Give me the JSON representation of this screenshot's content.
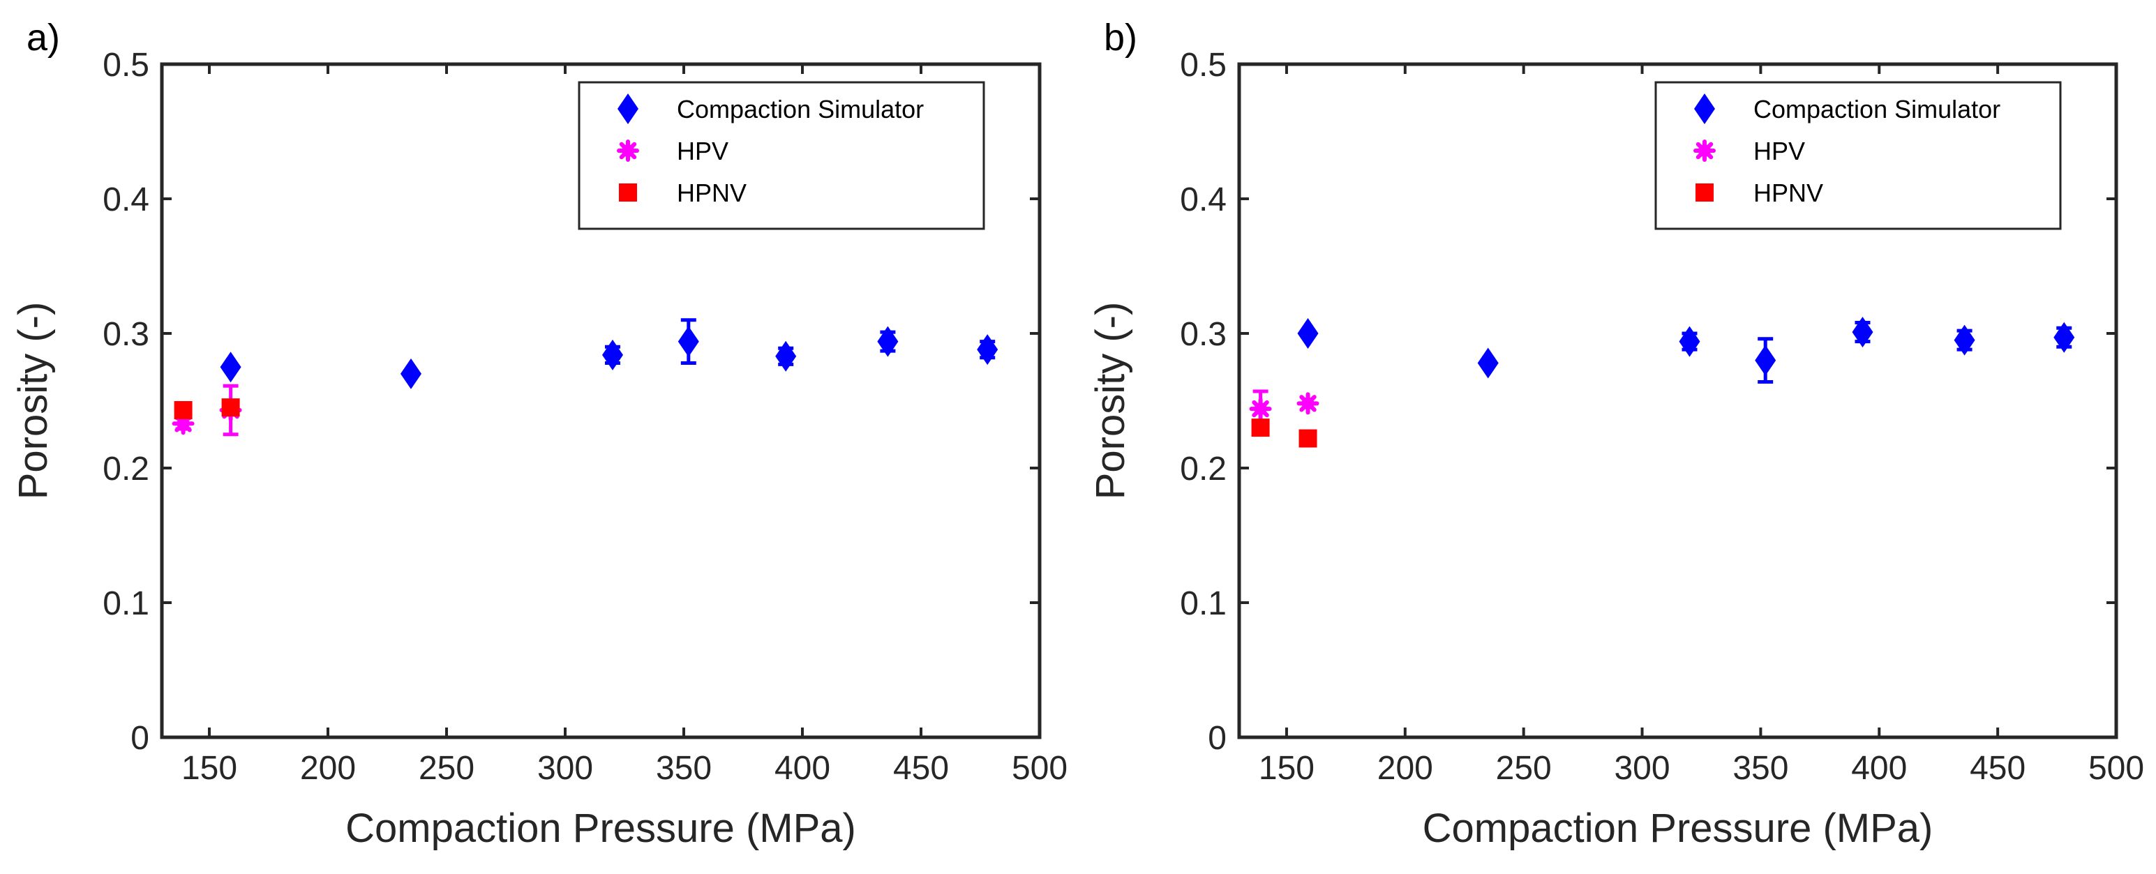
{
  "colors": {
    "compaction": "#0000ff",
    "hpv": "#ff00ff",
    "hpnv": "#ff0000",
    "axis": "#262626",
    "background": "#ffffff"
  },
  "chart_data": [
    {
      "type": "scatter",
      "panel_label": "a)",
      "xlabel": "Compaction Pressure (MPa)",
      "ylabel": "Porosity (-)",
      "xlim": [
        130,
        500
      ],
      "ylim": [
        0,
        0.5
      ],
      "xticks": [
        150,
        200,
        250,
        300,
        350,
        400,
        450,
        500
      ],
      "yticks": [
        0,
        0.1,
        0.2,
        0.3,
        0.4,
        0.5
      ],
      "xtick_labels": [
        "150",
        "200",
        "250",
        "300",
        "350",
        "400",
        "450",
        "500"
      ],
      "ytick_labels": [
        "0",
        "0.1",
        "0.2",
        "0.3",
        "0.4",
        "0.5"
      ],
      "legend_position": "top-right",
      "series": [
        {
          "name": "Compaction Simulator",
          "marker": "diamond",
          "color": "#0000ff",
          "points": [
            {
              "x": 159,
              "y": 0.275,
              "err": 0
            },
            {
              "x": 235,
              "y": 0.27,
              "err": 0
            },
            {
              "x": 320,
              "y": 0.284,
              "err": 0.006
            },
            {
              "x": 352,
              "y": 0.294,
              "err": 0.016
            },
            {
              "x": 393,
              "y": 0.283,
              "err": 0.006
            },
            {
              "x": 436,
              "y": 0.294,
              "err": 0.007
            },
            {
              "x": 478,
              "y": 0.288,
              "err": 0.006
            }
          ]
        },
        {
          "name": "HPV",
          "marker": "asterisk",
          "color": "#ff00ff",
          "points": [
            {
              "x": 139,
              "y": 0.233,
              "err": 0.004
            },
            {
              "x": 159,
              "y": 0.243,
              "err": 0.018
            }
          ]
        },
        {
          "name": "HPNV",
          "marker": "square",
          "color": "#ff0000",
          "points": [
            {
              "x": 139,
              "y": 0.243,
              "err": 0
            },
            {
              "x": 159,
              "y": 0.245,
              "err": 0
            }
          ]
        }
      ]
    },
    {
      "type": "scatter",
      "panel_label": "b)",
      "xlabel": "Compaction Pressure (MPa)",
      "ylabel": "Porosity (-)",
      "xlim": [
        130,
        500
      ],
      "ylim": [
        0,
        0.5
      ],
      "xticks": [
        150,
        200,
        250,
        300,
        350,
        400,
        450,
        500
      ],
      "yticks": [
        0,
        0.1,
        0.2,
        0.3,
        0.4,
        0.5
      ],
      "xtick_labels": [
        "150",
        "200",
        "250",
        "300",
        "350",
        "400",
        "450",
        "500"
      ],
      "ytick_labels": [
        "0",
        "0.1",
        "0.2",
        "0.3",
        "0.4",
        "0.5"
      ],
      "legend_position": "top-right",
      "series": [
        {
          "name": "Compaction Simulator",
          "marker": "diamond",
          "color": "#0000ff",
          "points": [
            {
              "x": 159,
              "y": 0.3,
              "err": 0
            },
            {
              "x": 235,
              "y": 0.278,
              "err": 0
            },
            {
              "x": 320,
              "y": 0.294,
              "err": 0.006
            },
            {
              "x": 352,
              "y": 0.28,
              "err": 0.016
            },
            {
              "x": 393,
              "y": 0.301,
              "err": 0.007
            },
            {
              "x": 436,
              "y": 0.295,
              "err": 0.007
            },
            {
              "x": 478,
              "y": 0.297,
              "err": 0.007
            }
          ]
        },
        {
          "name": "HPV",
          "marker": "asterisk",
          "color": "#ff00ff",
          "points": [
            {
              "x": 139,
              "y": 0.244,
              "err": 0.013
            },
            {
              "x": 159,
              "y": 0.248,
              "err": 0
            }
          ]
        },
        {
          "name": "HPNV",
          "marker": "square",
          "color": "#ff0000",
          "points": [
            {
              "x": 139,
              "y": 0.23,
              "err": 0.005
            },
            {
              "x": 159,
              "y": 0.222,
              "err": 0
            }
          ]
        }
      ]
    }
  ]
}
